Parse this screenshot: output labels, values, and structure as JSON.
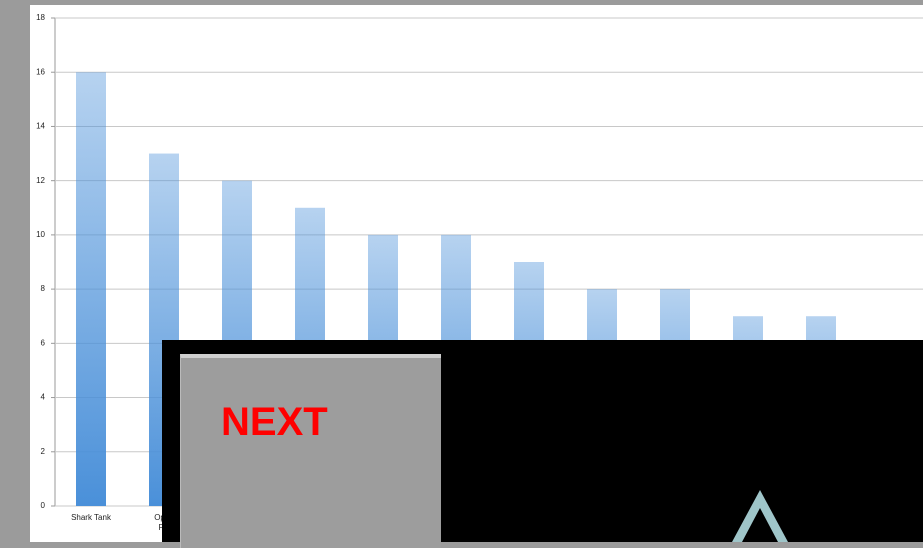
{
  "chart_data": {
    "type": "bar",
    "categories": [
      "Shark Tank",
      "Oppo\nFin",
      null,
      null,
      null,
      null,
      null,
      null,
      null,
      null,
      null
    ],
    "values": [
      16,
      13,
      12,
      11,
      10,
      10,
      9,
      8,
      8,
      7,
      7
    ],
    "color": "#4a90d9",
    "ylim": [
      0,
      18
    ],
    "yticks": [
      0,
      2,
      4,
      6,
      8,
      10,
      12,
      14,
      16,
      18
    ],
    "grid": true
  },
  "overlay": {
    "button": "NEXT"
  }
}
